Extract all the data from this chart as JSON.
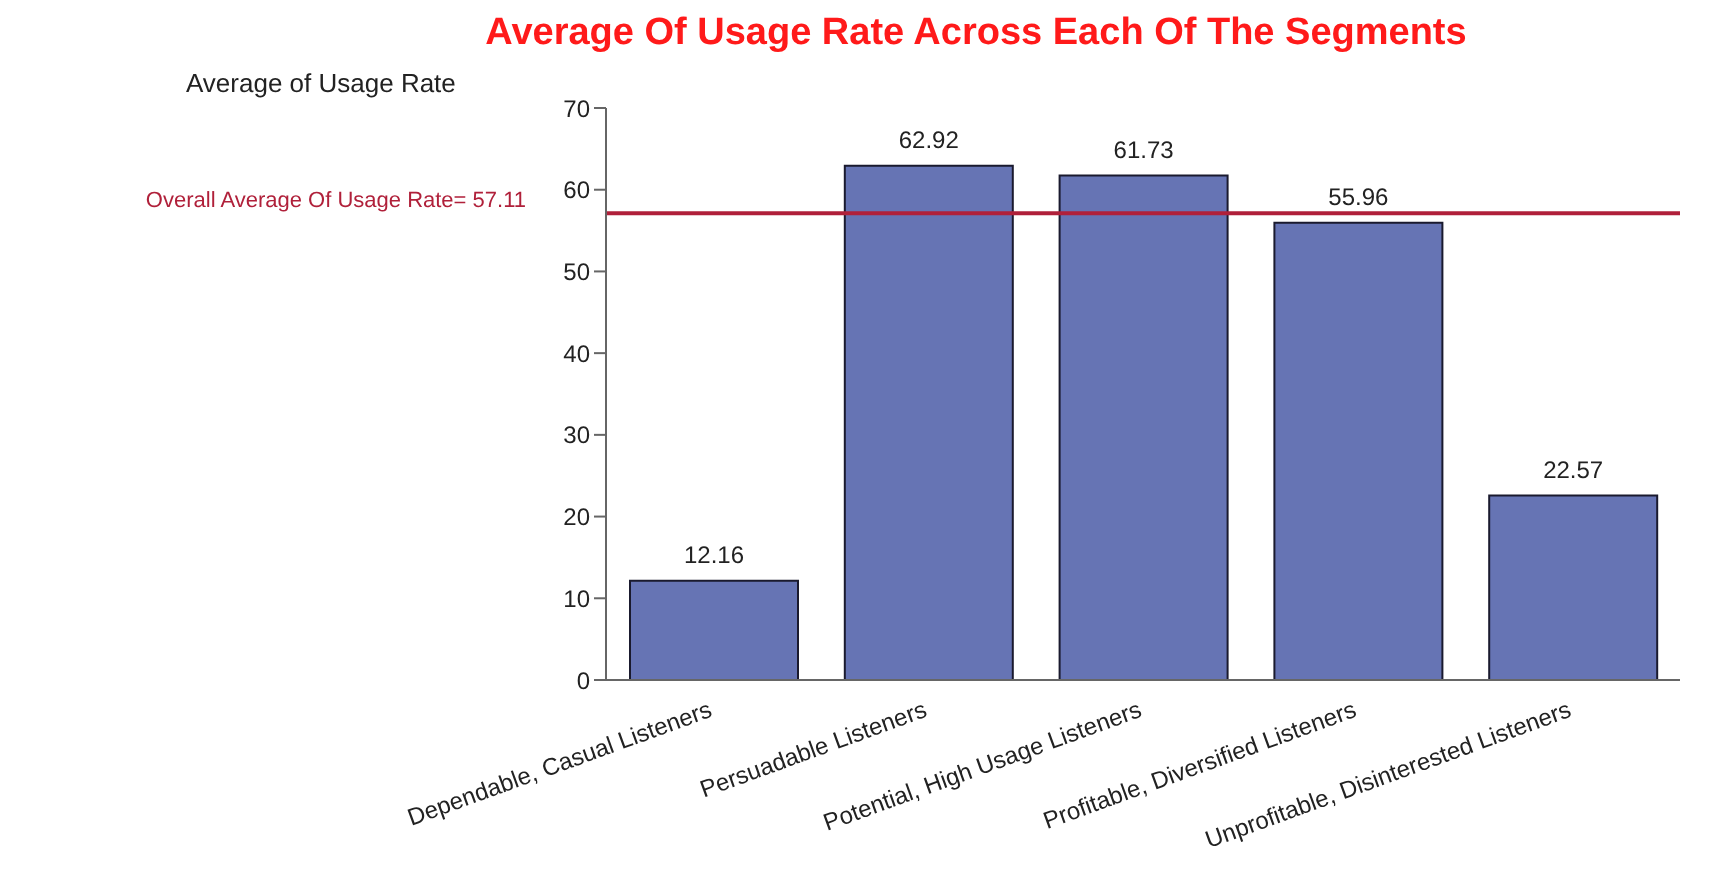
{
  "chart_data": {
    "type": "bar",
    "title": "Average Of Usage Rate Across Each Of The Segments",
    "ylabel": "Average of Usage Rate",
    "categories": [
      "Dependable, Casual Listeners",
      "Persuadable Listeners",
      "Potential, High Usage Listeners",
      "Profitable, Diversified Listeners",
      "Unprofitable, Disinterested Listeners"
    ],
    "values": [
      12.16,
      62.92,
      61.73,
      55.96,
      22.57
    ],
    "color": "#6674b4",
    "data_labels": true,
    "ylim": [
      0,
      70
    ],
    "yticks": [
      0,
      10,
      20,
      30,
      40,
      50,
      60,
      70
    ],
    "grid": false,
    "ref_lines": [
      {
        "axis": "y",
        "value": 57.11,
        "label": "Overall Average Of Usage Rate= 57.11",
        "color": "#b0203a",
        "line_style": "solid"
      }
    ]
  }
}
